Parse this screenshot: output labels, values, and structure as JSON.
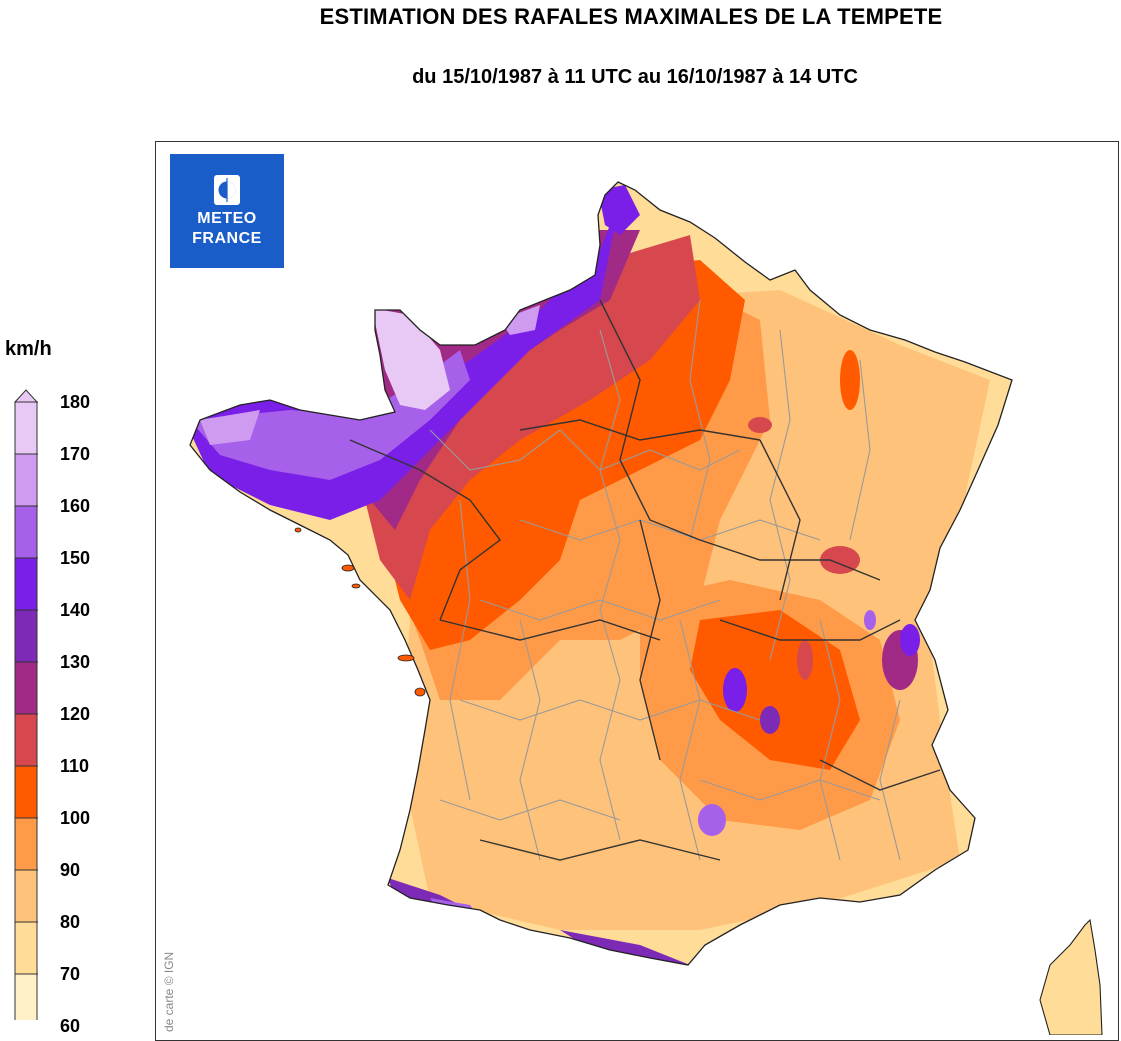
{
  "title": "ESTIMATION DES RAFALES MAXIMALES DE LA TEMPETE",
  "subtitle": "du 15/10/1987 à 11 UTC au 16/10/1987 à 14 UTC",
  "logo": {
    "line1": "METEO",
    "line2": "FRANCE",
    "icon": "meteo-france-logo-icon",
    "color": "#1a5dc8"
  },
  "legend": {
    "unit": "km/h",
    "ticks": [
      "180",
      "170",
      "160",
      "150",
      "140",
      "130",
      "120",
      "110",
      "100",
      "90",
      "80",
      "70",
      "60"
    ],
    "colors_high_to_low": [
      "#e8c8f4",
      "#cf9bf0",
      "#a660ea",
      "#7a1fe8",
      "#7d2ab6",
      "#a12a86",
      "#d6484e",
      "#ff5a00",
      "#ff9b48",
      "#ffc27a",
      "#ffdc98",
      "#fff0c8"
    ]
  },
  "credit": "de carte © IGN"
}
